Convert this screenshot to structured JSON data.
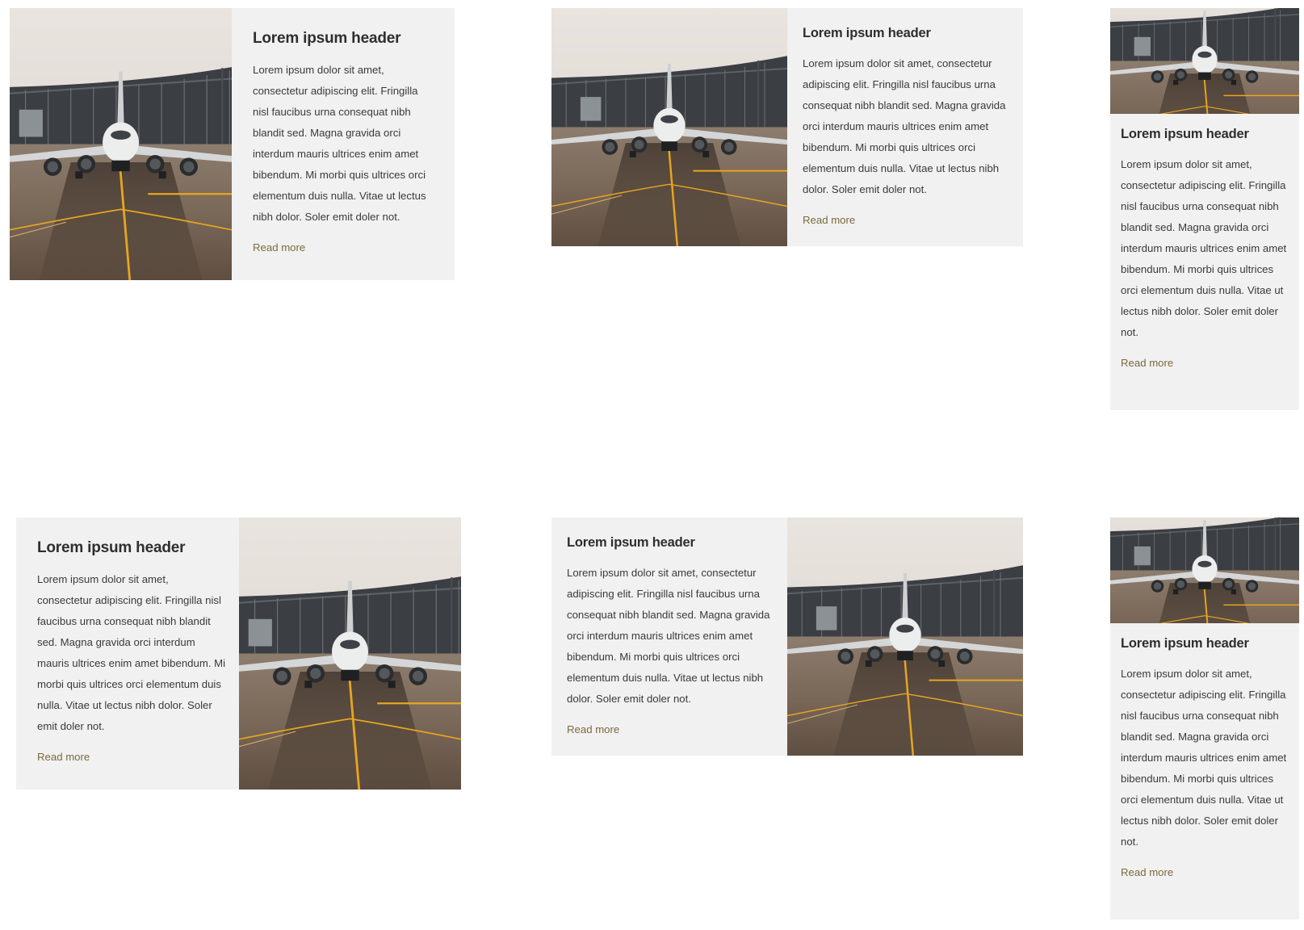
{
  "theme": {
    "card_bg": "#f1f1f1",
    "link_color": "#7a6a3a",
    "heading_color": "#2e2e2e"
  },
  "cards": [
    {
      "header": "Lorem ipsum header",
      "body": "Lorem ipsum dolor sit amet, consectetur adipiscing elit. Fringilla nisl faucibus urna consequat nibh blandit sed. Magna gravida orci interdum mauris ultrices enim amet bibendum. Mi morbi quis ultrices orci elementum duis nulla. Vitae ut lectus nibh dolor. Soler emit doler not.",
      "link": "Read more",
      "image_alt": "airplane-on-runway"
    },
    {
      "header": "Lorem ipsum header",
      "body": "Lorem ipsum dolor sit amet, consectetur adipiscing elit. Fringilla nisl faucibus urna consequat nibh blandit sed. Magna gravida orci interdum mauris ultrices enim amet bibendum. Mi morbi quis ultrices orci elementum duis nulla. Vitae ut lectus nibh dolor. Soler emit doler not.",
      "link": "Read more",
      "image_alt": "airplane-on-runway"
    },
    {
      "header": "Lorem ipsum header",
      "body": "Lorem ipsum dolor sit amet, consectetur adipiscing elit. Fringilla nisl faucibus urna consequat nibh blandit sed. Magna gravida orci interdum mauris ultrices enim amet bibendum. Mi morbi quis ultrices orci elementum duis nulla. Vitae ut lectus nibh dolor. Soler emit doler not.",
      "link": "Read more",
      "image_alt": "airplane-on-runway"
    },
    {
      "header": "Lorem ipsum header",
      "body": "Lorem ipsum dolor sit amet, consectetur adipiscing elit. Fringilla nisl faucibus urna consequat nibh blandit sed. Magna gravida orci interdum mauris ultrices enim amet bibendum. Mi morbi quis ultrices orci elementum duis nulla. Vitae ut lectus nibh dolor. Soler emit doler not.",
      "link": "Read more",
      "image_alt": "airplane-on-runway"
    },
    {
      "header": "Lorem ipsum header",
      "body": "Lorem ipsum dolor sit amet, consectetur adipiscing elit. Fringilla nisl faucibus urna consequat nibh blandit sed. Magna gravida orci interdum mauris ultrices enim amet bibendum. Mi morbi quis ultrices orci elementum duis nulla. Vitae ut lectus nibh dolor. Soler emit doler not.",
      "link": "Read more",
      "image_alt": "airplane-on-runway"
    },
    {
      "header": "Lorem ipsum header",
      "body": "Lorem ipsum dolor sit amet, consectetur adipiscing elit. Fringilla nisl faucibus urna consequat nibh blandit sed. Magna gravida orci interdum mauris ultrices enim amet bibendum. Mi morbi quis ultrices orci elementum duis nulla. Vitae ut lectus nibh dolor. Soler emit doler not.",
      "link": "Read more",
      "image_alt": "airplane-on-runway"
    }
  ]
}
